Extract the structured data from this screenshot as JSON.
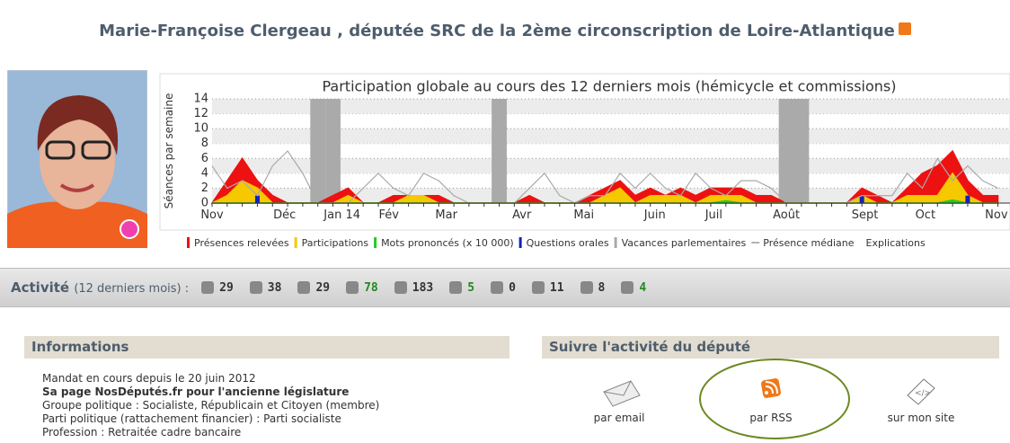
{
  "header": {
    "title": "Marie-Françoise Clergeau , députée SRC de la 2ème circonscription de Loire-Atlantique"
  },
  "chart": {
    "type": "area",
    "title": "Participation globale au cours des 12 derniers mois (hémicycle et commissions)",
    "y_label": "Séances par semaine",
    "ylim": [
      0,
      14
    ],
    "yticks": [
      0,
      2,
      4,
      6,
      8,
      10,
      12,
      14
    ],
    "grid": true,
    "xlim": [
      0,
      52.8
    ],
    "xticks": [
      {
        "value": 0,
        "label": "Nov"
      },
      {
        "value": 4.8,
        "label": "Déc"
      },
      {
        "value": 8.6,
        "label": "Jan 14"
      },
      {
        "value": 11.7,
        "label": "Fév"
      },
      {
        "value": 15.5,
        "label": "Mar"
      },
      {
        "value": 20.5,
        "label": "Avr"
      },
      {
        "value": 24.6,
        "label": "Mai"
      },
      {
        "value": 29.3,
        "label": "Juin"
      },
      {
        "value": 33.2,
        "label": "Juil"
      },
      {
        "value": 38,
        "label": "Août"
      },
      {
        "value": 43.2,
        "label": "Sept"
      },
      {
        "value": 47.2,
        "label": "Oct"
      },
      {
        "value": 51.9,
        "label": "Nov"
      }
    ],
    "series": [
      {
        "name": "Présences relevées",
        "kind": "area",
        "color": "#ee1111",
        "values": [
          0,
          3,
          6,
          3,
          1,
          0,
          0,
          0,
          1,
          2,
          0,
          0,
          1,
          1,
          1,
          1,
          0,
          0,
          0,
          0,
          0,
          1,
          0,
          0,
          0,
          1,
          2,
          3,
          1,
          2,
          1,
          2,
          1,
          2,
          2,
          2,
          1,
          1,
          0,
          0,
          0,
          0,
          0,
          2,
          1,
          0,
          2,
          4,
          5,
          7,
          3,
          1,
          1
        ]
      },
      {
        "name": "Participations",
        "kind": "area",
        "color": "#f5c800",
        "values": [
          0,
          1,
          3,
          2,
          0,
          0,
          0,
          0,
          0,
          1,
          0,
          0,
          0,
          1,
          1,
          0,
          0,
          0,
          0,
          0,
          0,
          0,
          0,
          0,
          0,
          0,
          1,
          2,
          0,
          1,
          1,
          1,
          0,
          1,
          1,
          1,
          0,
          0,
          0,
          0,
          0,
          0,
          0,
          1,
          0,
          0,
          1,
          1,
          1,
          4,
          1,
          0,
          0
        ]
      },
      {
        "name": "Mots prononcés (x 10 000)",
        "kind": "area",
        "color": "#22cc22",
        "values": [
          0,
          0,
          0,
          0,
          0,
          0,
          0,
          0,
          0,
          0,
          0,
          0,
          0,
          0,
          0,
          0,
          0,
          0,
          0,
          0,
          0,
          0,
          0,
          0,
          0,
          0,
          0,
          0,
          0,
          0,
          0,
          0,
          0,
          0,
          0.3,
          0,
          0,
          0,
          0,
          0,
          0,
          0,
          0,
          0,
          0,
          0,
          0,
          0,
          0,
          0.4,
          0,
          0,
          0
        ]
      },
      {
        "name": "Questions orales",
        "kind": "bar",
        "color": "#1122bb",
        "values": [
          0,
          0,
          0,
          1,
          0,
          0,
          0,
          0,
          0,
          0,
          0,
          0,
          0,
          0,
          0,
          0,
          0,
          0,
          0,
          0,
          0,
          0,
          0,
          0,
          0,
          0,
          0,
          0,
          0,
          0,
          0,
          0,
          0,
          0,
          0,
          0,
          0,
          0,
          0,
          0,
          0,
          0,
          0,
          1,
          0,
          0,
          0,
          0,
          0,
          0,
          1,
          0,
          0
        ]
      },
      {
        "name": "Vacances parlementaires",
        "kind": "band",
        "color": "#aaaaaa",
        "values": [
          null,
          null,
          null,
          null,
          null,
          null,
          null,
          14,
          14,
          null,
          null,
          null,
          null,
          null,
          null,
          null,
          null,
          null,
          null,
          14,
          null,
          null,
          null,
          null,
          null,
          null,
          null,
          null,
          null,
          null,
          null,
          null,
          null,
          null,
          null,
          null,
          null,
          null,
          14,
          14,
          null,
          null,
          null,
          null,
          null,
          null,
          null,
          null,
          null,
          null,
          null,
          null,
          null
        ]
      },
      {
        "name": "Présence médiane",
        "kind": "line",
        "color": "#aaaaaa",
        "values": [
          5,
          2,
          3,
          1,
          5,
          7,
          4,
          0,
          0,
          0,
          2,
          4,
          2,
          1,
          4,
          3,
          1,
          0,
          0,
          0,
          0,
          2,
          4,
          1,
          0,
          1,
          1,
          4,
          2,
          4,
          2,
          1,
          4,
          2,
          1,
          3,
          3,
          2,
          0,
          0,
          0,
          0,
          0,
          1,
          1,
          1,
          4,
          2,
          6,
          3,
          5,
          3,
          2
        ]
      }
    ],
    "legend_extra": "Explications"
  },
  "activity": {
    "label": "Activité",
    "period": "(12 derniers mois) :",
    "items": [
      {
        "value": 29,
        "color": "#333333"
      },
      {
        "value": 38,
        "color": "#333333"
      },
      {
        "value": 29,
        "color": "#333333"
      },
      {
        "value": 78,
        "color": "#228822"
      },
      {
        "value": 183,
        "color": "#333333"
      },
      {
        "value": 5,
        "color": "#228822"
      },
      {
        "value": 0,
        "color": "#333333"
      },
      {
        "value": 11,
        "color": "#333333"
      },
      {
        "value": 8,
        "color": "#333333"
      },
      {
        "value": 4,
        "color": "#228822"
      }
    ]
  },
  "informations": {
    "title": "Informations",
    "lines": [
      "Mandat en cours depuis le 20 juin 2012",
      "Sa page NosDéputés.fr pour l'ancienne législature",
      "Groupe politique : Socialiste, Républicain et Citoyen (membre)",
      "Parti politique (rattachement financier) : Parti socialiste",
      "Profession : Retraitée cadre bancaire"
    ]
  },
  "suivre": {
    "title": "Suivre l'activité du député",
    "options": [
      "par email",
      "par RSS",
      "sur mon site"
    ]
  }
}
